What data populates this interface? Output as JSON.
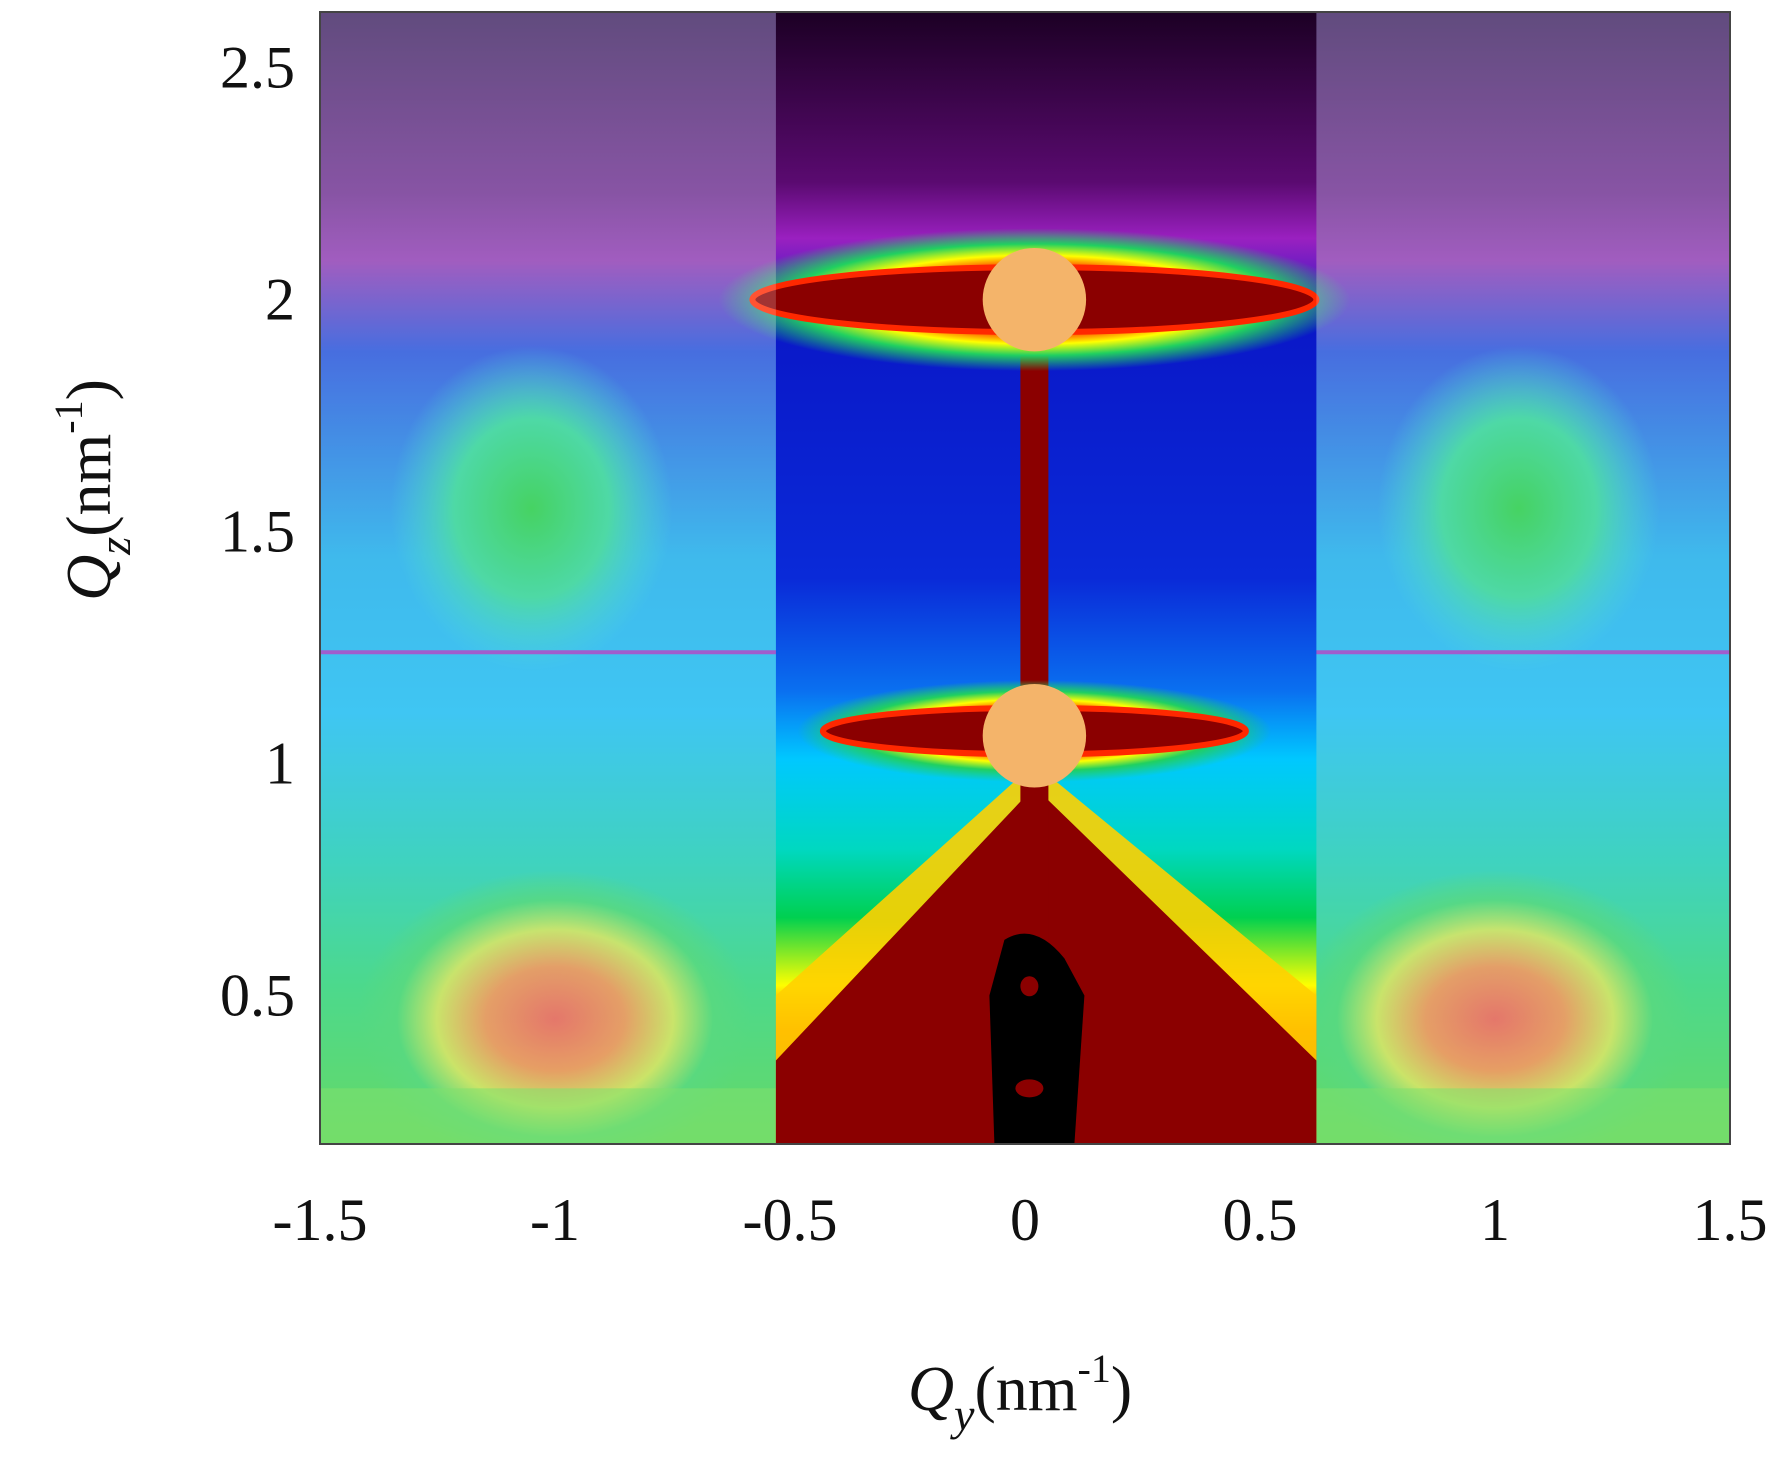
{
  "chart_data": {
    "type": "heatmap",
    "title": "",
    "xlabel": {
      "symbol": "Q",
      "subscript": "y",
      "unit": "(nm",
      "exponent": "-1",
      "close": ")"
    },
    "ylabel": {
      "symbol": "Q",
      "subscript": "z",
      "unit": "(nm",
      "exponent": "-1",
      "close": ")"
    },
    "xlim": [
      -1.5,
      1.5
    ],
    "ylim": [
      0.18,
      2.62
    ],
    "x_ticks": [
      -1.5,
      -1,
      -0.5,
      0,
      0.5,
      1,
      1.5
    ],
    "x_tick_labels": [
      "-1.5",
      "-1",
      "-0.5",
      "0",
      "0.5",
      "1",
      "1.5"
    ],
    "y_ticks": [
      0.5,
      1,
      1.5,
      2,
      2.5
    ],
    "y_tick_labels": [
      "0.5",
      "1",
      "1.5",
      "2",
      "2.5"
    ],
    "grid": false,
    "colormap": [
      "#1a0026",
      "#5a1e7a",
      "#0a1ec8",
      "#00c8ff",
      "#00d264",
      "#ffff00",
      "#ff3200",
      "#8b0000"
    ],
    "central_strip": {
      "x_range": [
        -0.53,
        0.62
      ],
      "note": "full-saturation overlay"
    },
    "side_panels_opacity": 0.65,
    "features": [
      {
        "name": "bragg-peak-upper",
        "qy": 0.02,
        "qz": 2.0,
        "qy_halfwidth": 0.6,
        "qz_halfwidth": 0.07
      },
      {
        "name": "bragg-peak-lower",
        "qy": 0.02,
        "qz": 1.07,
        "qy_halfwidth": 0.45,
        "qz_halfwidth": 0.05
      },
      {
        "name": "beamstop-upper",
        "qy": 0.02,
        "qz": 2.0,
        "radius": 0.11
      },
      {
        "name": "beamstop-lower",
        "qy": 0.02,
        "qz": 1.06,
        "radius": 0.11
      },
      {
        "name": "side-lobe-left-upper",
        "qy": -1.05,
        "qz": 1.55
      },
      {
        "name": "side-lobe-right-upper",
        "qy": 1.05,
        "qz": 1.55
      },
      {
        "name": "side-lobe-left-lower",
        "qy": -1.0,
        "qz": 0.45
      },
      {
        "name": "side-lobe-right-lower",
        "qy": 1.0,
        "qz": 0.45
      },
      {
        "name": "detector-gap",
        "qz": 1.24
      }
    ]
  }
}
